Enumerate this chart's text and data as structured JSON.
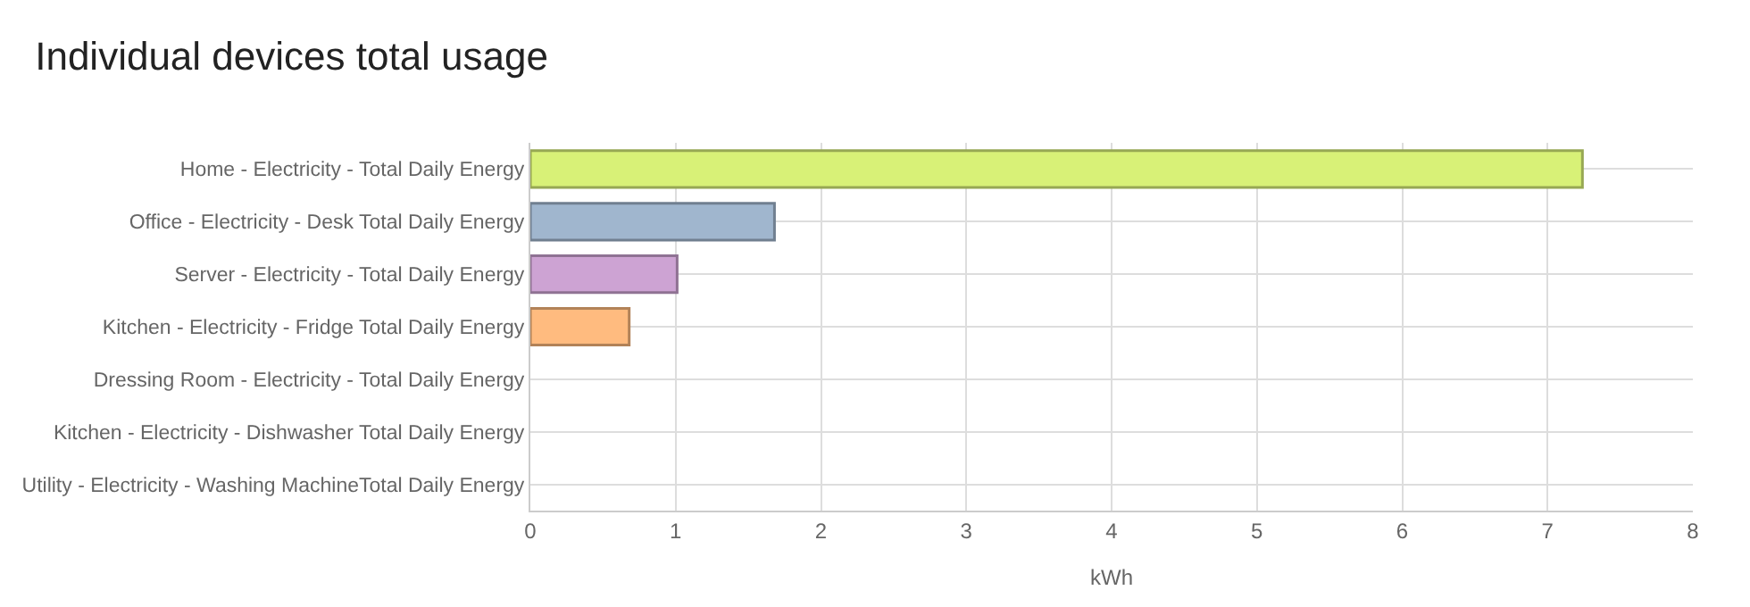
{
  "chart_data": {
    "type": "bar",
    "orientation": "horizontal",
    "title": "Individual devices total usage",
    "xlabel": "kWh",
    "categories": [
      "Home - Electricity - Total Daily Energy",
      "Office - Electricity - Desk Total Daily Energy",
      "Server - Electricity - Total Daily Energy",
      "Kitchen - Electricity - Fridge Total Daily Energy",
      "Dressing Room - Electricity - Total Daily Energy",
      "Kitchen - Electricity - Dishwasher Total Daily Energy",
      "Utility - Electricity - Washing MachineTotal Daily Energy"
    ],
    "values": [
      7.24,
      1.68,
      1.01,
      0.68,
      0,
      0,
      0
    ],
    "colors": [
      "#d8f177",
      "#a0b6ce",
      "#cda3d3",
      "#ffbb7f",
      null,
      null,
      null
    ],
    "xlim": [
      0,
      8
    ],
    "xticks": [
      0,
      1,
      2,
      3,
      4,
      5,
      6,
      7,
      8
    ],
    "grid": true
  }
}
